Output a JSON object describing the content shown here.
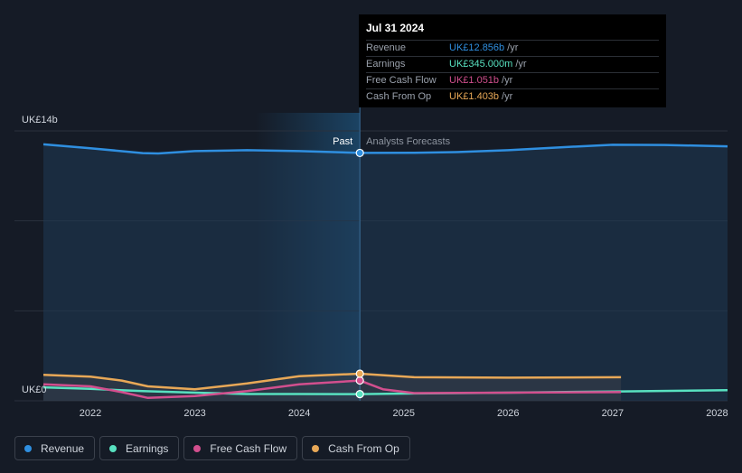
{
  "chart_data": {
    "type": "line",
    "x_domain": [
      2021.55,
      2028.1
    ],
    "ylim": [
      0,
      14
    ],
    "y_tick_labels": [
      {
        "value": 14,
        "label": "UK£14b"
      },
      {
        "value": 0,
        "label": "UK£0"
      }
    ],
    "x_ticks": [
      2022,
      2023,
      2024,
      2025,
      2026,
      2027,
      2028
    ],
    "x_tick_labels": [
      "2022",
      "2023",
      "2024",
      "2025",
      "2026",
      "2027",
      "2028"
    ],
    "past_divider_x": 2024.58,
    "past_label": "Past",
    "forecast_label": "Analysts Forecasts",
    "series": [
      {
        "name": "Revenue",
        "color": "#2f8fe0",
        "points": [
          [
            2021.55,
            13.3
          ],
          [
            2022.0,
            13.1
          ],
          [
            2022.5,
            12.85
          ],
          [
            2022.65,
            12.83
          ],
          [
            2023.0,
            12.95
          ],
          [
            2023.5,
            13.0
          ],
          [
            2024.0,
            12.95
          ],
          [
            2024.58,
            12.856
          ],
          [
            2025.1,
            12.86
          ],
          [
            2025.5,
            12.9
          ],
          [
            2026.0,
            13.0
          ],
          [
            2026.5,
            13.15
          ],
          [
            2027.0,
            13.28
          ],
          [
            2027.5,
            13.27
          ],
          [
            2028.1,
            13.2
          ]
        ]
      },
      {
        "name": "Earnings",
        "color": "#58e1c0",
        "points": [
          [
            2021.55,
            0.7
          ],
          [
            2022.0,
            0.62
          ],
          [
            2022.5,
            0.5
          ],
          [
            2023.0,
            0.42
          ],
          [
            2023.5,
            0.35
          ],
          [
            2024.0,
            0.35
          ],
          [
            2024.58,
            0.345
          ],
          [
            2025.1,
            0.38
          ],
          [
            2026.0,
            0.42
          ],
          [
            2027.0,
            0.48
          ],
          [
            2028.1,
            0.55
          ]
        ]
      },
      {
        "name": "Free Cash Flow",
        "color": "#d24f8e",
        "points": [
          [
            2021.55,
            0.85
          ],
          [
            2022.0,
            0.75
          ],
          [
            2022.3,
            0.45
          ],
          [
            2022.55,
            0.15
          ],
          [
            2023.0,
            0.25
          ],
          [
            2023.5,
            0.5
          ],
          [
            2024.0,
            0.85
          ],
          [
            2024.58,
            1.051
          ],
          [
            2024.8,
            0.6
          ],
          [
            2025.1,
            0.4
          ],
          [
            2026.0,
            0.42
          ],
          [
            2027.08,
            0.45
          ]
        ]
      },
      {
        "name": "Cash From Op",
        "color": "#e8a857",
        "points": [
          [
            2021.55,
            1.35
          ],
          [
            2022.0,
            1.25
          ],
          [
            2022.3,
            1.05
          ],
          [
            2022.55,
            0.75
          ],
          [
            2023.0,
            0.6
          ],
          [
            2023.5,
            0.9
          ],
          [
            2024.0,
            1.28
          ],
          [
            2024.58,
            1.403
          ],
          [
            2025.1,
            1.22
          ],
          [
            2026.0,
            1.2
          ],
          [
            2027.08,
            1.22
          ]
        ]
      }
    ],
    "legend": [
      "Revenue",
      "Earnings",
      "Free Cash Flow",
      "Cash From Op"
    ],
    "legend_position": "bottom-left",
    "grid": true
  },
  "tooltip": {
    "date": "Jul 31 2024",
    "rows": [
      {
        "label": "Revenue",
        "value": "UK£12.856b",
        "unit": "/yr",
        "color": "#2f8fe0"
      },
      {
        "label": "Earnings",
        "value": "UK£345.000m",
        "unit": "/yr",
        "color": "#58e1c0"
      },
      {
        "label": "Free Cash Flow",
        "value": "UK£1.051b",
        "unit": "/yr",
        "color": "#d24f8e"
      },
      {
        "label": "Cash From Op",
        "value": "UK£1.403b",
        "unit": "/yr",
        "color": "#e8a857"
      }
    ]
  },
  "legend_items": [
    {
      "label": "Revenue",
      "color": "#2f8fe0"
    },
    {
      "label": "Earnings",
      "color": "#58e1c0"
    },
    {
      "label": "Free Cash Flow",
      "color": "#d24f8e"
    },
    {
      "label": "Cash From Op",
      "color": "#e8a857"
    }
  ]
}
